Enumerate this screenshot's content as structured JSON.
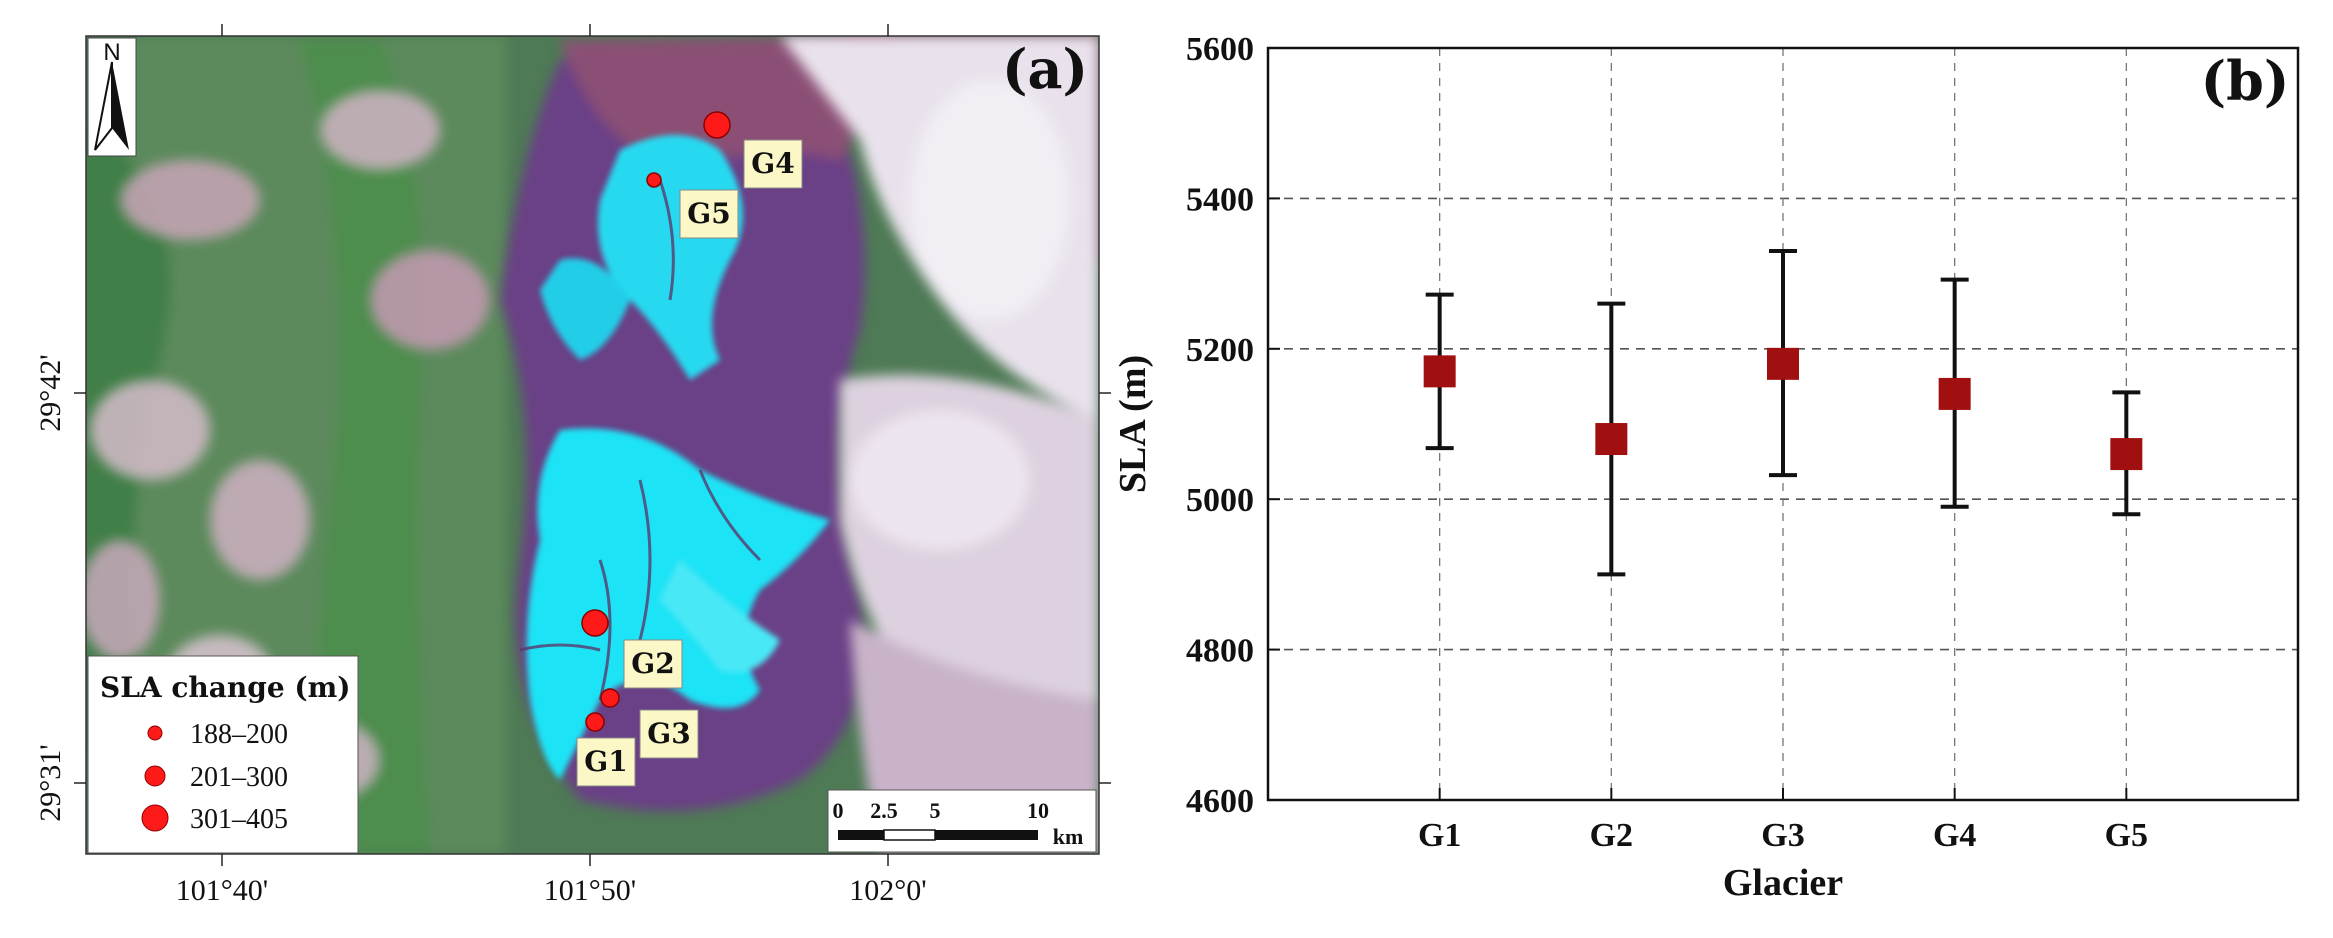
{
  "panel_a": {
    "label": "(a)",
    "north_label": "N",
    "lon_ticks": [
      "101°40'",
      "101°50'",
      "102°0'"
    ],
    "lat_ticks": [
      "29°42'",
      "29°31'"
    ],
    "glaciers": [
      {
        "id": "G1",
        "label": "G1",
        "sla_change_class": "188–200"
      },
      {
        "id": "G2",
        "label": "G2",
        "sla_change_class": "301–405"
      },
      {
        "id": "G3",
        "label": "G3",
        "sla_change_class": "188–200"
      },
      {
        "id": "G4",
        "label": "G4",
        "sla_change_class": "301–405"
      },
      {
        "id": "G5",
        "label": "G5",
        "sla_change_class": "188–200"
      }
    ],
    "legend": {
      "title": "SLA change (m)",
      "items": [
        {
          "label": "188–200",
          "size": "small"
        },
        {
          "label": "201–300",
          "size": "medium"
        },
        {
          "label": "301–405",
          "size": "large"
        }
      ]
    },
    "scale_bar": {
      "labels": [
        "0",
        "2.5",
        "5",
        "10"
      ],
      "unit": "km"
    },
    "colors": {
      "marker": "#ff1a1a",
      "label_box": "#fbf7c6",
      "ice": "#1ee3f5",
      "snow": "#e8e0ea",
      "rock": "#7d3f6c",
      "vegetation": "#3f8f47"
    }
  },
  "chart_data": {
    "type": "scatter",
    "label": "(b)",
    "categories": [
      "G1",
      "G2",
      "G3",
      "G4",
      "G5"
    ],
    "values": [
      5170,
      5080,
      5180,
      5140,
      5060
    ],
    "error_low": [
      5068,
      4900,
      5032,
      4990,
      4980
    ],
    "error_high": [
      5272,
      5260,
      5330,
      5292,
      5142
    ],
    "xlabel": "Glacier",
    "ylabel": "SLA (m)",
    "ylim": [
      4600,
      5600
    ],
    "yticks": [
      4600,
      4800,
      5000,
      5200,
      5400,
      5600
    ],
    "grid": true,
    "marker_color": "#a01010"
  }
}
